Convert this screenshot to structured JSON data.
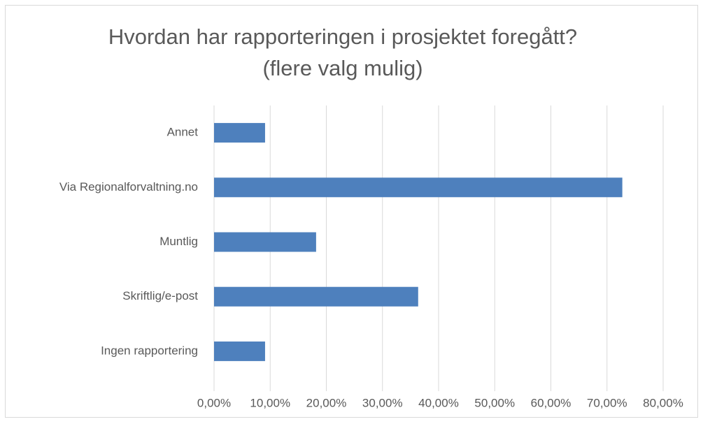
{
  "chart_data": {
    "type": "barh",
    "title": [
      "Hvordan har rapporteringen i prosjektet foregått?",
      "(flere valg mulig)"
    ],
    "categories": [
      "Annet",
      "Via Regionalforvaltning.no",
      "Muntlig",
      "Skriftlig/e-post",
      "Ingen rapportering"
    ],
    "values": [
      9.09,
      72.73,
      18.18,
      36.36,
      9.09
    ],
    "color": "#4e80bd",
    "xlim": [
      0,
      80
    ],
    "xticks": [
      {
        "value": 0,
        "label": "0,00%"
      },
      {
        "value": 10,
        "label": "10,00%"
      },
      {
        "value": 20,
        "label": "20,00%"
      },
      {
        "value": 30,
        "label": "30,00%"
      },
      {
        "value": 40,
        "label": "40,00%"
      },
      {
        "value": 50,
        "label": "50,00%"
      },
      {
        "value": 60,
        "label": "60,00%"
      },
      {
        "value": 70,
        "label": "70,00%"
      },
      {
        "value": 80,
        "label": "80,00%"
      }
    ],
    "grid": true
  }
}
